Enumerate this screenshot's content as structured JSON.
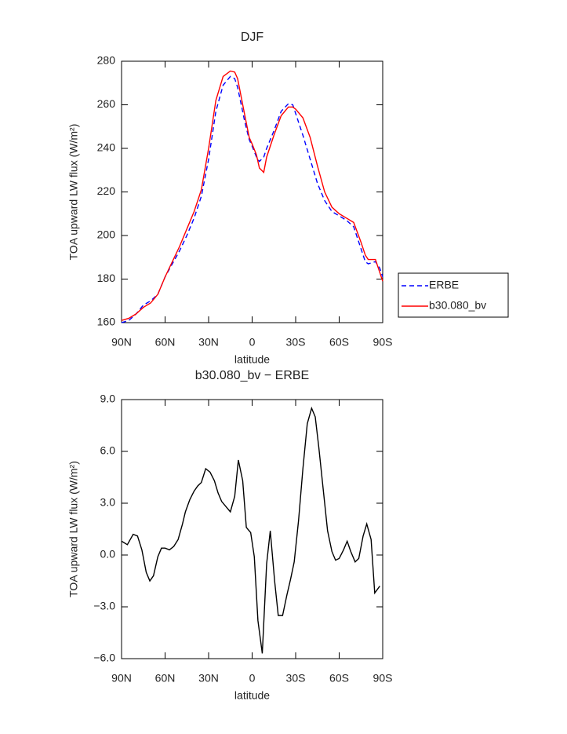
{
  "chart_data": [
    {
      "type": "line",
      "title": "DJF",
      "x_label": "latitude",
      "y_label": "TOA upward LW flux (W/m²)",
      "x": [
        90,
        85,
        80,
        75,
        70,
        65,
        60,
        55,
        50,
        45,
        40,
        35,
        30,
        25,
        20,
        15,
        12,
        10,
        5,
        2,
        0,
        -3,
        -5,
        -8,
        -10,
        -15,
        -20,
        -25,
        -28,
        -30,
        -35,
        -40,
        -45,
        -50,
        -55,
        -60,
        -65,
        -70,
        -75,
        -78,
        -80,
        -85,
        -88,
        -90
      ],
      "series": [
        {
          "name": "ERBE",
          "color": "#0000ff",
          "dashed": true,
          "values": [
            160,
            161,
            164,
            168,
            170,
            173,
            181,
            187,
            193,
            200,
            208,
            218,
            235,
            257,
            269,
            273,
            272,
            268,
            252,
            244,
            241,
            236,
            234,
            236,
            240,
            248,
            257,
            260.5,
            260,
            256,
            246,
            235,
            224,
            216,
            211,
            209,
            207,
            204,
            194,
            188,
            187,
            188,
            185,
            181
          ]
        },
        {
          "name": "b30.080_bv",
          "color": "#ff0000",
          "dashed": false,
          "values": [
            161,
            162,
            164,
            167,
            169,
            173,
            181,
            188,
            195,
            203,
            211,
            221,
            240,
            262,
            273,
            275.5,
            275,
            272,
            255,
            245,
            242,
            237,
            231,
            229,
            236,
            246,
            255,
            259,
            259,
            258,
            254,
            245,
            232,
            220,
            213,
            210,
            208,
            206,
            197,
            191,
            189,
            189,
            183,
            179
          ]
        }
      ],
      "xlim": [
        90,
        -90
      ],
      "xticks": [
        {
          "value": 90,
          "label": "90N"
        },
        {
          "value": 60,
          "label": "60N"
        },
        {
          "value": 30,
          "label": "30N"
        },
        0,
        {
          "value": -30,
          "label": "30S"
        },
        {
          "value": -60,
          "label": "60S"
        },
        {
          "value": -90,
          "label": "90S"
        }
      ],
      "ylim": [
        160,
        280
      ],
      "yticks": [
        160,
        180,
        200,
        220,
        240,
        260,
        280
      ],
      "legend": "right"
    },
    {
      "type": "line",
      "title": "b30.080_bv − ERBE",
      "x_label": "latitude",
      "y_label": "TOA upward LW flux (W/m²)",
      "x": [
        90,
        86,
        82,
        79,
        76,
        73,
        70.5,
        68,
        65,
        62.5,
        60,
        57,
        54,
        51,
        48,
        46,
        43,
        40,
        37.5,
        35,
        32,
        29,
        26,
        23.5,
        21,
        18,
        15,
        12,
        9.5,
        6.5,
        4,
        1,
        -1.5,
        -4,
        -7,
        -10,
        -12.5,
        -15.5,
        -18,
        -21,
        -24,
        -26.5,
        -29,
        -32,
        -35,
        -38,
        -41,
        -43.5,
        -46,
        -49,
        -52,
        -55,
        -57.5,
        -60,
        -63,
        -65.5,
        -68,
        -71,
        -73.5,
        -76.5,
        -79,
        -82,
        -84.5,
        -88
      ],
      "values": [
        0.8,
        0.6,
        1.2,
        1.1,
        0.3,
        -1.0,
        -1.5,
        -1.2,
        -0.1,
        0.4,
        0.4,
        0.3,
        0.5,
        0.9,
        1.8,
        2.5,
        3.2,
        3.7,
        4.0,
        4.2,
        5.0,
        4.8,
        4.3,
        3.6,
        3.1,
        2.8,
        2.5,
        3.4,
        5.5,
        4.3,
        1.6,
        1.3,
        -0.1,
        -3.8,
        -5.7,
        -0.5,
        1.4,
        -1.5,
        -3.5,
        -3.5,
        -2.3,
        -1.4,
        -0.4,
        2.0,
        5.0,
        7.6,
        8.5,
        8.0,
        6.2,
        3.8,
        1.4,
        0.2,
        -0.3,
        -0.2,
        0.3,
        0.8,
        0.2,
        -0.4,
        -0.2,
        1.1,
        1.8,
        0.9,
        -2.2,
        -1.8
      ],
      "color": "#000000",
      "xlim": [
        90,
        -90
      ],
      "xticks": [
        {
          "value": 90,
          "label": "90N"
        },
        {
          "value": 60,
          "label": "60N"
        },
        {
          "value": 30,
          "label": "30N"
        },
        0,
        {
          "value": -30,
          "label": "30S"
        },
        {
          "value": -60,
          "label": "60S"
        },
        {
          "value": -90,
          "label": "90S"
        }
      ],
      "ylim": [
        -6,
        9
      ],
      "yticks": [
        {
          "value": -6,
          "label": "−6.0"
        },
        {
          "value": -3,
          "label": "−3.0"
        },
        {
          "value": 0,
          "label": "0.0"
        },
        {
          "value": 3,
          "label": "3.0"
        },
        {
          "value": 6,
          "label": "6.0"
        },
        {
          "value": 9,
          "label": "9.0"
        }
      ]
    }
  ]
}
